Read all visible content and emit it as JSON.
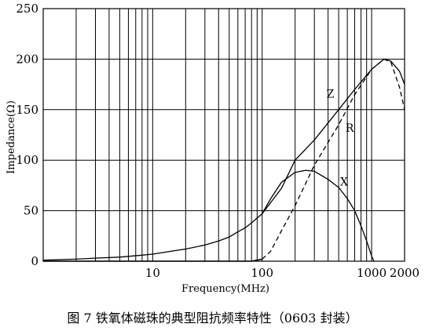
{
  "caption": "图 7  铁氧体磁珠的典型阻抗频率特性（0603 封装）",
  "chart_data": {
    "type": "line",
    "title": "",
    "xlabel": "Frequency(MHz)",
    "ylabel": "Impedance(Ω)",
    "x_scale": "log",
    "xlim": [
      1,
      2000
    ],
    "ylim": [
      0,
      250
    ],
    "x_tick_labels": [
      {
        "value": 10,
        "label": "10"
      },
      {
        "value": 100,
        "label": "100"
      },
      {
        "value": 1000,
        "label": "1000"
      },
      {
        "value": 2000,
        "label": "2000"
      }
    ],
    "y_ticks": [
      0,
      50,
      100,
      150,
      200,
      250
    ],
    "grid": true,
    "series": [
      {
        "name": "Z",
        "style": "solid",
        "label_at": [
          420,
          162
        ],
        "x": [
          1,
          2,
          3,
          5,
          8,
          10,
          15,
          20,
          30,
          40,
          50,
          60,
          70,
          80,
          100,
          150,
          200,
          300,
          500,
          700,
          1000,
          1300,
          1500,
          1800,
          2000
        ],
        "y": [
          1,
          2,
          3,
          4,
          6,
          7,
          10,
          12,
          16,
          20,
          24,
          29,
          33,
          38,
          47,
          72,
          100,
          120,
          150,
          170,
          190,
          200,
          198,
          188,
          175
        ]
      },
      {
        "name": "R",
        "style": "dashed",
        "label_at": [
          630,
          128
        ],
        "x": [
          1,
          50,
          80,
          100,
          120,
          150,
          200,
          300,
          500,
          700,
          1000,
          1300,
          1500,
          1800,
          2000
        ],
        "y": [
          0,
          0,
          0,
          2,
          10,
          30,
          55,
          95,
          135,
          165,
          190,
          200,
          197,
          172,
          150
        ],
        "dash_from": 100
      },
      {
        "name": "X",
        "style": "solid",
        "label_at": [
          560,
          75
        ],
        "x": [
          100,
          120,
          150,
          200,
          250,
          300,
          400,
          500,
          600,
          700,
          800,
          900,
          1000,
          1050
        ],
        "y": [
          47,
          62,
          78,
          88,
          90,
          89,
          81,
          73,
          62,
          50,
          35,
          20,
          5,
          0
        ]
      }
    ]
  }
}
